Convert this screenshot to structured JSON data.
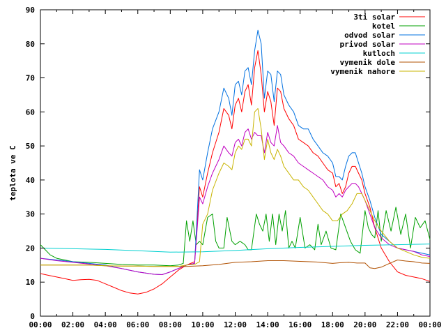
{
  "chart_data": {
    "type": "line",
    "ylabel": "teplota ve C",
    "xlabel": "",
    "ylim": [
      0,
      90
    ],
    "xlim": [
      0,
      24
    ],
    "yticks": [
      0,
      10,
      20,
      30,
      40,
      50,
      60,
      70,
      80,
      90
    ],
    "ytick_labels": [
      "0",
      "10",
      "20",
      "30",
      "40",
      "50",
      "60",
      "70",
      "80",
      "90"
    ],
    "xtick_labels": [
      "00:00",
      "02:00",
      "04:00",
      "06:00",
      "08:00",
      "10:00",
      "12:00",
      "14:00",
      "16:00",
      "18:00",
      "20:00",
      "22:00",
      "00:00"
    ],
    "grid": false,
    "legend_position": "top-right",
    "series": [
      {
        "name": "3ti solar",
        "color": "#ff0000",
        "x": [
          0,
          0.5,
          1,
          1.5,
          2,
          2.5,
          3,
          3.5,
          4,
          4.5,
          5,
          5.5,
          6,
          6.5,
          7,
          7.5,
          8,
          8.5,
          9,
          9.5,
          9.8,
          10,
          10.3,
          10.6,
          11,
          11.3,
          11.6,
          11.8,
          12,
          12.2,
          12.4,
          12.6,
          12.8,
          13,
          13.2,
          13.4,
          13.6,
          13.8,
          14,
          14.2,
          14.4,
          14.6,
          14.8,
          15,
          15.3,
          15.6,
          15.9,
          16.2,
          16.5,
          16.8,
          17.1,
          17.4,
          17.7,
          18,
          18.2,
          18.4,
          18.6,
          18.8,
          19,
          19.2,
          19.4,
          19.6,
          19.8,
          20,
          20.3,
          20.6,
          21,
          21.5,
          22,
          22.5,
          23,
          23.5,
          24
        ],
        "values": [
          12.5,
          12,
          11.5,
          11,
          10.5,
          10.7,
          10.8,
          10.5,
          9.5,
          8.5,
          7.5,
          6.8,
          6.5,
          7,
          8,
          9.5,
          11.5,
          13.5,
          15,
          16,
          38,
          35,
          42,
          48,
          54,
          61,
          59,
          55,
          62,
          64,
          60,
          66,
          68,
          62,
          73,
          78,
          71,
          60,
          66,
          63,
          56,
          67,
          66,
          61,
          58,
          56,
          52,
          51,
          50,
          48,
          47,
          45,
          43,
          42,
          38,
          39,
          36,
          38,
          42,
          44,
          44,
          42,
          40,
          36,
          32,
          26,
          20,
          16,
          13,
          12,
          11.5,
          11,
          10.2
        ]
      },
      {
        "name": "kotel",
        "color": "#00a000",
        "x": [
          0,
          0.3,
          0.6,
          1,
          1.5,
          2,
          3,
          4,
          5,
          6,
          7,
          8,
          8.5,
          8.8,
          9,
          9.2,
          9.4,
          9.6,
          9.8,
          10,
          10.3,
          10.6,
          10.8,
          11,
          11.3,
          11.5,
          11.8,
          12,
          12.3,
          12.6,
          12.8,
          13,
          13.3,
          13.5,
          13.7,
          13.9,
          14.1,
          14.3,
          14.5,
          14.7,
          14.9,
          15.1,
          15.3,
          15.5,
          15.7,
          16,
          16.3,
          16.6,
          16.9,
          17.1,
          17.3,
          17.6,
          17.9,
          18.2,
          18.5,
          18.8,
          19.1,
          19.4,
          19.7,
          20,
          20.2,
          20.4,
          20.6,
          20.8,
          21,
          21.3,
          21.6,
          21.9,
          22.2,
          22.5,
          22.8,
          23.1,
          23.4,
          23.7,
          24
        ],
        "values": [
          21,
          19.5,
          18,
          17,
          16.5,
          16,
          15.8,
          15.5,
          15.2,
          15,
          15,
          14.8,
          15,
          15.5,
          28,
          22,
          28,
          21,
          22,
          21,
          29,
          30,
          22,
          20,
          20,
          29,
          22,
          21,
          22,
          21,
          19.5,
          19.5,
          30,
          27,
          25,
          30,
          22,
          30,
          21,
          30,
          25,
          31,
          20,
          22,
          20,
          29,
          20,
          21,
          19.5,
          27,
          21,
          25,
          20,
          19.5,
          30,
          26,
          22,
          19.5,
          18.5,
          31,
          26,
          24,
          23,
          31,
          22,
          31,
          25,
          32,
          24,
          30,
          20,
          29,
          26,
          28,
          22.5
        ]
      },
      {
        "name": "odvod solar",
        "color": "#0070e0",
        "x": [
          0,
          1,
          2,
          3,
          4,
          5,
          6,
          7,
          7.5,
          8,
          9,
          9.5,
          9.8,
          10,
          10.3,
          10.6,
          11,
          11.3,
          11.6,
          11.8,
          12,
          12.2,
          12.4,
          12.6,
          12.8,
          13,
          13.2,
          13.4,
          13.6,
          13.8,
          14,
          14.2,
          14.4,
          14.6,
          14.8,
          15,
          15.3,
          15.6,
          15.9,
          16.2,
          16.5,
          16.8,
          17.1,
          17.4,
          17.7,
          18,
          18.2,
          18.4,
          18.6,
          18.8,
          19,
          19.2,
          19.4,
          19.6,
          19.8,
          20,
          20.3,
          20.6,
          21,
          21.5,
          22,
          22.5,
          23,
          23.5,
          24
        ],
        "values": [
          17,
          16.5,
          16,
          15.5,
          15,
          14,
          13,
          12.3,
          12.2,
          13,
          15,
          15.5,
          43,
          40,
          48,
          55,
          60,
          67,
          64,
          59,
          68,
          69,
          65,
          72,
          73,
          68,
          78,
          84,
          80,
          64,
          72,
          71,
          63,
          72,
          71,
          65,
          62,
          60,
          56,
          55,
          55,
          52,
          50,
          48,
          47,
          45,
          41,
          41,
          40,
          44,
          47,
          48,
          48,
          45,
          42,
          38,
          34,
          29,
          24,
          22,
          20,
          19.5,
          19,
          18.5,
          18
        ]
      },
      {
        "name": "privod solar",
        "color": "#c000c0",
        "x": [
          0,
          1,
          2,
          3,
          4,
          5,
          6,
          7,
          7.5,
          8,
          9,
          9.5,
          9.8,
          10,
          10.3,
          10.6,
          11,
          11.3,
          11.6,
          11.8,
          12,
          12.2,
          12.4,
          12.6,
          12.8,
          13,
          13.2,
          13.4,
          13.6,
          13.8,
          14,
          14.2,
          14.4,
          14.6,
          14.8,
          15,
          15.3,
          15.6,
          15.9,
          16.2,
          16.5,
          16.8,
          17.1,
          17.4,
          17.7,
          18,
          18.2,
          18.4,
          18.6,
          18.8,
          19,
          19.2,
          19.4,
          19.6,
          19.8,
          20,
          20.3,
          20.6,
          21,
          21.5,
          22,
          22.5,
          23,
          23.5,
          24
        ],
        "values": [
          17,
          16.3,
          15.8,
          15.3,
          14.8,
          14,
          13,
          12.3,
          12.2,
          13,
          15,
          15.5,
          35,
          33,
          38,
          42,
          46,
          50,
          48,
          47,
          51,
          52,
          50,
          54,
          55,
          52,
          54,
          53,
          53,
          48,
          54,
          51,
          50,
          56,
          51,
          50,
          48,
          47,
          45,
          44,
          43,
          42,
          41,
          40,
          38,
          37,
          35,
          36,
          35,
          37,
          38,
          39,
          39,
          38,
          36,
          34,
          30,
          26,
          23,
          21,
          20,
          19.5,
          19,
          18,
          17.5
        ]
      },
      {
        "name": "kutloch",
        "color": "#00d0d0",
        "x": [
          0,
          2,
          4,
          6,
          8,
          10,
          12,
          14,
          16,
          18,
          20,
          22,
          24
        ],
        "values": [
          20,
          19.8,
          19.6,
          19.2,
          18.8,
          18.9,
          19.3,
          19.8,
          20.2,
          20.5,
          20.8,
          21,
          21.2
        ]
      },
      {
        "name": "vymenik dole",
        "color": "#b05000",
        "x": [
          0,
          1,
          2,
          3,
          4,
          5,
          6,
          7,
          8,
          9,
          10,
          11,
          12,
          13,
          14,
          15,
          16,
          17,
          18,
          18.5,
          19,
          19.5,
          20,
          20.3,
          20.6,
          21,
          21.5,
          22,
          22.5,
          23,
          23.5,
          24
        ],
        "values": [
          15,
          15,
          15,
          15,
          14.8,
          14.7,
          14.7,
          14.6,
          14.6,
          14.6,
          14.8,
          15.2,
          15.8,
          16,
          16.3,
          16.3,
          16.1,
          15.9,
          15.5,
          15.7,
          15.8,
          15.6,
          15.6,
          14.2,
          14,
          14.4,
          15.5,
          16.5,
          16.2,
          16,
          15.6,
          15.5
        ]
      },
      {
        "name": "vymenik nahore",
        "color": "#c8b400",
        "x": [
          0,
          1,
          2,
          3,
          4,
          5,
          6,
          7,
          8,
          8.5,
          9,
          9.5,
          9.8,
          10,
          10.3,
          10.6,
          11,
          11.3,
          11.6,
          11.8,
          12,
          12.2,
          12.4,
          12.6,
          12.8,
          13,
          13.2,
          13.4,
          13.6,
          13.8,
          14,
          14.2,
          14.4,
          14.6,
          14.8,
          15,
          15.3,
          15.6,
          15.9,
          16.2,
          16.5,
          16.8,
          17.1,
          17.4,
          17.7,
          18,
          18.3,
          18.6,
          18.9,
          19.2,
          19.5,
          19.8,
          20,
          20.3,
          20.6,
          21,
          21.5,
          22,
          22.5,
          23,
          23.5,
          24
        ],
        "values": [
          15,
          15,
          15,
          15,
          14.8,
          14.7,
          14.7,
          14.6,
          14.6,
          14.6,
          15,
          15.2,
          16,
          27,
          30,
          37,
          42,
          45,
          44,
          43,
          48,
          50,
          49,
          52,
          52,
          50,
          60,
          61,
          55,
          46,
          52,
          48,
          46,
          49,
          47,
          44,
          42,
          40,
          40,
          38,
          37,
          35,
          33,
          31,
          30,
          28,
          28,
          30,
          31,
          33,
          36,
          36,
          34,
          31,
          28,
          25,
          22,
          20,
          19,
          18,
          17.3,
          17
        ]
      }
    ]
  }
}
